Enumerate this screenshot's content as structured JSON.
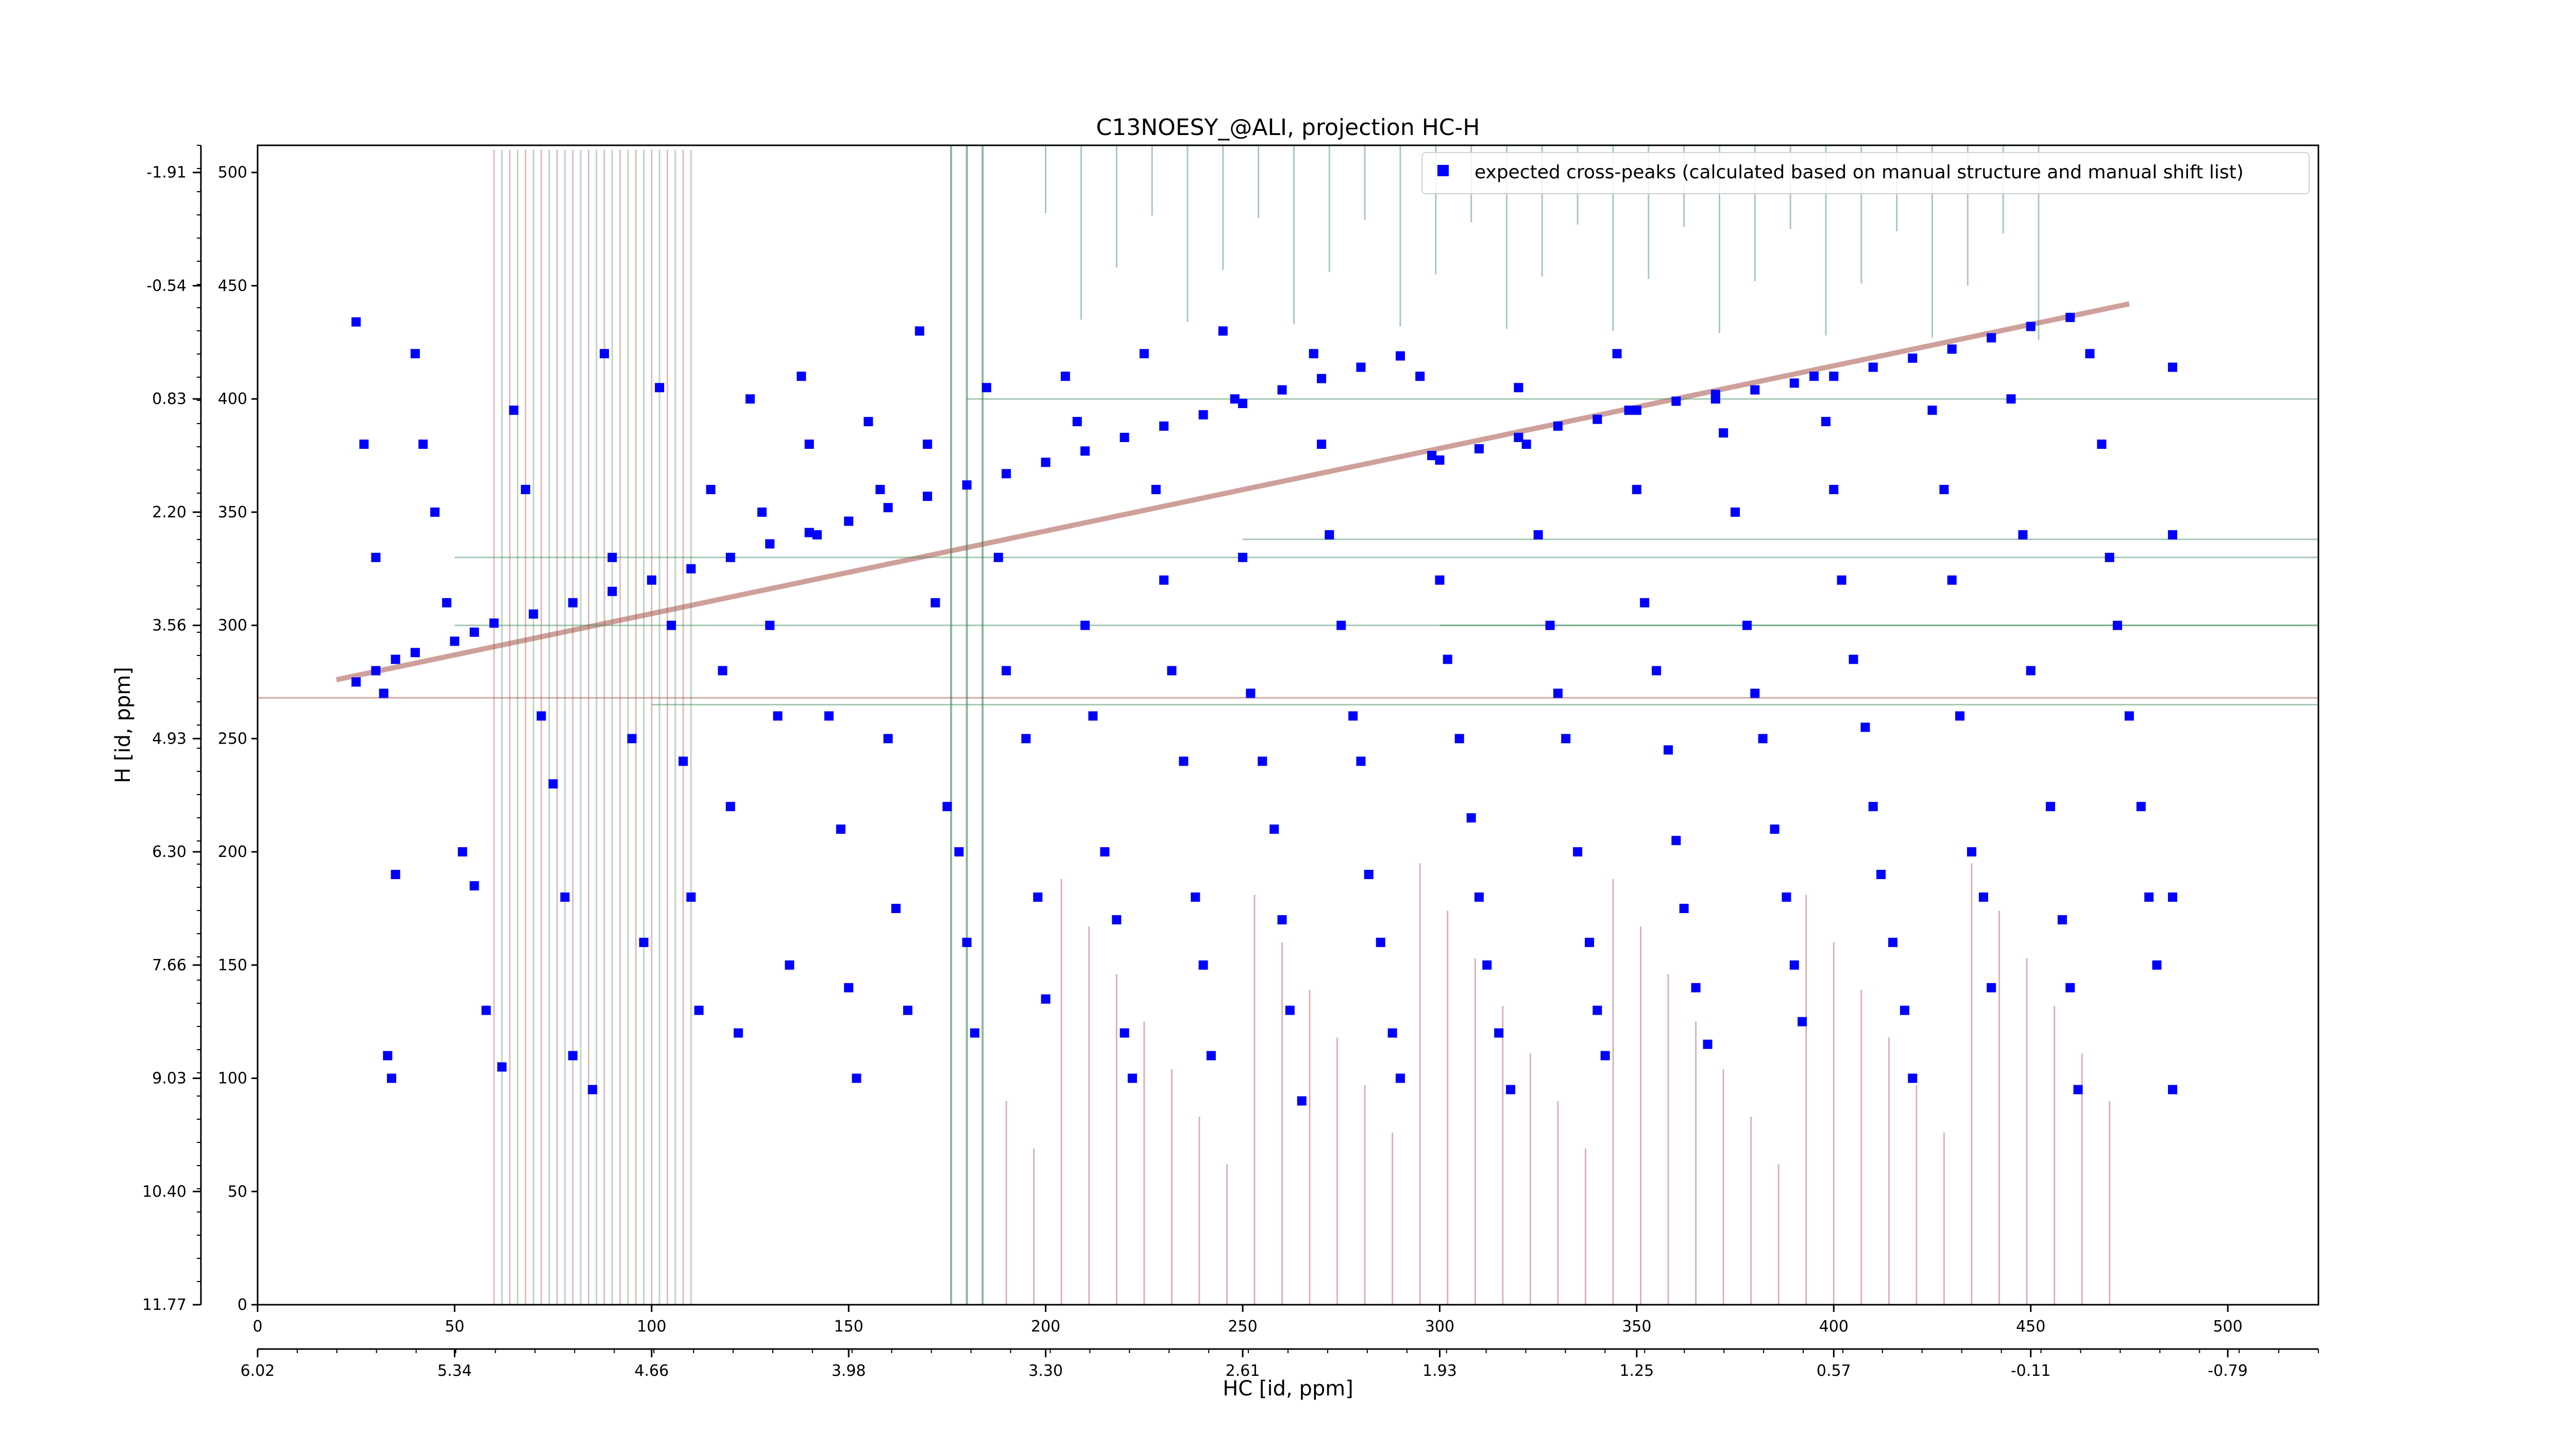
{
  "chart_data": {
    "type": "scatter",
    "title": "C13NOESY_@ALI, projection HC-H",
    "xlabel": "HC [id, ppm]",
    "ylabel": "H [id, ppm]",
    "x_index_range": [
      0,
      523
    ],
    "y_index_range": [
      0,
      512
    ],
    "x_index_ticks": [
      "0",
      "50",
      "100",
      "150",
      "200",
      "250",
      "300",
      "350",
      "400",
      "450",
      "500"
    ],
    "x_ppm_ticks": [
      "6.02",
      "5.34",
      "4.66",
      "3.98",
      "3.30",
      "2.61",
      "1.93",
      "1.25",
      "0.57",
      "-0.11",
      "-0.79"
    ],
    "y_index_ticks": [
      "0",
      "50",
      "100",
      "150",
      "200",
      "250",
      "300",
      "350",
      "400",
      "450",
      "500"
    ],
    "y_ppm_ticks": [
      "11.77",
      "10.40",
      "9.03",
      "7.66",
      "6.30",
      "4.93",
      "3.56",
      "2.20",
      "0.83",
      "-0.54",
      "-1.91"
    ],
    "legend": {
      "label": "expected cross-peaks (calculated based on manual structure and manual shift list)",
      "placement": "upper right"
    },
    "colors": {
      "markers": "#0000ff",
      "positive_contours": "#a0443a",
      "negative_contours": "#3e8a5a"
    },
    "grid": false,
    "series": [
      {
        "name": "expected cross-peaks (calculated based on manual structure and manual shift list)",
        "points": [
          [
            25,
            275
          ],
          [
            30,
            280
          ],
          [
            35,
            285
          ],
          [
            40,
            288
          ],
          [
            50,
            293
          ],
          [
            55,
            297
          ],
          [
            60,
            301
          ],
          [
            70,
            305
          ],
          [
            80,
            310
          ],
          [
            90,
            315
          ],
          [
            100,
            320
          ],
          [
            110,
            325
          ],
          [
            120,
            330
          ],
          [
            130,
            336
          ],
          [
            140,
            341
          ],
          [
            150,
            346
          ],
          [
            160,
            352
          ],
          [
            170,
            357
          ],
          [
            180,
            362
          ],
          [
            190,
            367
          ],
          [
            200,
            372
          ],
          [
            210,
            377
          ],
          [
            220,
            383
          ],
          [
            230,
            388
          ],
          [
            240,
            393
          ],
          [
            250,
            398
          ],
          [
            260,
            404
          ],
          [
            270,
            409
          ],
          [
            280,
            414
          ],
          [
            290,
            419
          ],
          [
            300,
            373
          ],
          [
            310,
            378
          ],
          [
            320,
            383
          ],
          [
            330,
            388
          ],
          [
            340,
            391
          ],
          [
            350,
            395
          ],
          [
            360,
            399
          ],
          [
            370,
            402
          ],
          [
            380,
            404
          ],
          [
            390,
            407
          ],
          [
            400,
            410
          ],
          [
            410,
            414
          ],
          [
            420,
            418
          ],
          [
            430,
            422
          ],
          [
            440,
            427
          ],
          [
            450,
            432
          ],
          [
            460,
            436
          ],
          [
            25,
            434
          ],
          [
            27,
            380
          ],
          [
            30,
            330
          ],
          [
            32,
            270
          ],
          [
            35,
            190
          ],
          [
            33,
            110
          ],
          [
            34,
            100
          ],
          [
            40,
            420
          ],
          [
            42,
            380
          ],
          [
            45,
            350
          ],
          [
            48,
            310
          ],
          [
            52,
            200
          ],
          [
            55,
            185
          ],
          [
            58,
            130
          ],
          [
            62,
            105
          ],
          [
            65,
            395
          ],
          [
            68,
            360
          ],
          [
            72,
            260
          ],
          [
            75,
            230
          ],
          [
            78,
            180
          ],
          [
            80,
            110
          ],
          [
            85,
            95
          ],
          [
            88,
            420
          ],
          [
            90,
            330
          ],
          [
            95,
            250
          ],
          [
            98,
            160
          ],
          [
            102,
            405
          ],
          [
            105,
            300
          ],
          [
            108,
            240
          ],
          [
            110,
            180
          ],
          [
            112,
            130
          ],
          [
            115,
            360
          ],
          [
            118,
            280
          ],
          [
            120,
            220
          ],
          [
            122,
            120
          ],
          [
            125,
            400
          ],
          [
            128,
            350
          ],
          [
            130,
            300
          ],
          [
            132,
            260
          ],
          [
            135,
            150
          ],
          [
            138,
            410
          ],
          [
            140,
            380
          ],
          [
            142,
            340
          ],
          [
            145,
            260
          ],
          [
            148,
            210
          ],
          [
            150,
            140
          ],
          [
            152,
            100
          ],
          [
            155,
            390
          ],
          [
            158,
            360
          ],
          [
            160,
            250
          ],
          [
            162,
            175
          ],
          [
            165,
            130
          ],
          [
            168,
            430
          ],
          [
            170,
            380
          ],
          [
            172,
            310
          ],
          [
            175,
            220
          ],
          [
            178,
            200
          ],
          [
            180,
            160
          ],
          [
            182,
            120
          ],
          [
            185,
            405
          ],
          [
            188,
            330
          ],
          [
            190,
            280
          ],
          [
            195,
            250
          ],
          [
            198,
            180
          ],
          [
            200,
            135
          ],
          [
            205,
            410
          ],
          [
            208,
            390
          ],
          [
            210,
            300
          ],
          [
            212,
            260
          ],
          [
            215,
            200
          ],
          [
            218,
            170
          ],
          [
            220,
            120
          ],
          [
            222,
            100
          ],
          [
            225,
            420
          ],
          [
            228,
            360
          ],
          [
            230,
            320
          ],
          [
            232,
            280
          ],
          [
            235,
            240
          ],
          [
            238,
            180
          ],
          [
            240,
            150
          ],
          [
            242,
            110
          ],
          [
            245,
            430
          ],
          [
            248,
            400
          ],
          [
            250,
            330
          ],
          [
            252,
            270
          ],
          [
            255,
            240
          ],
          [
            258,
            210
          ],
          [
            260,
            170
          ],
          [
            262,
            130
          ],
          [
            265,
            90
          ],
          [
            268,
            420
          ],
          [
            270,
            380
          ],
          [
            272,
            340
          ],
          [
            275,
            300
          ],
          [
            278,
            260
          ],
          [
            280,
            240
          ],
          [
            282,
            190
          ],
          [
            285,
            160
          ],
          [
            288,
            120
          ],
          [
            290,
            100
          ],
          [
            295,
            410
          ],
          [
            298,
            375
          ],
          [
            300,
            320
          ],
          [
            302,
            285
          ],
          [
            305,
            250
          ],
          [
            308,
            215
          ],
          [
            310,
            180
          ],
          [
            312,
            150
          ],
          [
            315,
            120
          ],
          [
            318,
            95
          ],
          [
            320,
            405
          ],
          [
            322,
            380
          ],
          [
            325,
            340
          ],
          [
            328,
            300
          ],
          [
            330,
            270
          ],
          [
            332,
            250
          ],
          [
            335,
            200
          ],
          [
            338,
            160
          ],
          [
            340,
            130
          ],
          [
            342,
            110
          ],
          [
            345,
            420
          ],
          [
            348,
            395
          ],
          [
            350,
            360
          ],
          [
            352,
            310
          ],
          [
            355,
            280
          ],
          [
            358,
            245
          ],
          [
            360,
            205
          ],
          [
            362,
            175
          ],
          [
            365,
            140
          ],
          [
            368,
            115
          ],
          [
            370,
            400
          ],
          [
            372,
            385
          ],
          [
            375,
            350
          ],
          [
            378,
            300
          ],
          [
            380,
            270
          ],
          [
            382,
            250
          ],
          [
            385,
            210
          ],
          [
            388,
            180
          ],
          [
            390,
            150
          ],
          [
            392,
            125
          ],
          [
            395,
            410
          ],
          [
            398,
            390
          ],
          [
            400,
            360
          ],
          [
            402,
            320
          ],
          [
            405,
            285
          ],
          [
            408,
            255
          ],
          [
            410,
            220
          ],
          [
            412,
            190
          ],
          [
            415,
            160
          ],
          [
            418,
            130
          ],
          [
            420,
            100
          ],
          [
            425,
            395
          ],
          [
            428,
            360
          ],
          [
            430,
            320
          ],
          [
            432,
            260
          ],
          [
            435,
            200
          ],
          [
            438,
            180
          ],
          [
            440,
            140
          ],
          [
            445,
            400
          ],
          [
            448,
            340
          ],
          [
            450,
            280
          ],
          [
            455,
            220
          ],
          [
            458,
            170
          ],
          [
            460,
            140
          ],
          [
            462,
            95
          ],
          [
            465,
            420
          ],
          [
            468,
            380
          ],
          [
            470,
            330
          ],
          [
            472,
            300
          ],
          [
            475,
            260
          ],
          [
            478,
            220
          ],
          [
            480,
            180
          ],
          [
            482,
            150
          ],
          [
            486,
            414
          ],
          [
            486,
            340
          ],
          [
            486,
            180
          ],
          [
            486,
            95
          ]
        ]
      }
    ]
  }
}
